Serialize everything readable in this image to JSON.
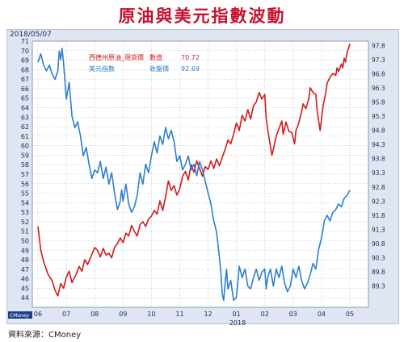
{
  "title": "原油與美元指數波動",
  "source": "資料來源：CMoney",
  "date_stamp": "2018/05/07",
  "watermark": "CMoney",
  "colors": {
    "oil": "#d41a1a",
    "dxy": "#2e7fd0",
    "title": "#c8102e",
    "plot_bg": "#ffffff",
    "panel_bg": "#dfe5f1",
    "grid": "#9aa7bd",
    "legend_text": "#d41a1a"
  },
  "chart_data": {
    "type": "line",
    "x_tick_labels": [
      "06",
      "07",
      "08",
      "09",
      "10",
      "11",
      "12",
      "01",
      "02",
      "03",
      "04",
      "05"
    ],
    "x_year_label": "2018",
    "ylim_left": [
      43,
      71
    ],
    "yticks_left": [
      44,
      45,
      46,
      47,
      48,
      49,
      50,
      51,
      52,
      53,
      54,
      55,
      56,
      57,
      58,
      59,
      60,
      61,
      62,
      63,
      64,
      65,
      66,
      67,
      68,
      69,
      70,
      71
    ],
    "ylim_right": [
      88.55,
      97.95
    ],
    "yticks_right": [
      "89.3",
      "89.8",
      "90.3",
      "90.8",
      "91.3",
      "91.8",
      "92.3",
      "92.8",
      "93.3",
      "93.8",
      "94.3",
      "94.8",
      "95.3",
      "95.8",
      "96.3",
      "96.8",
      "97.3",
      "97.8"
    ],
    "legend": [
      {
        "name": "西德州原油_現貨價",
        "metric": "數值",
        "value": "70.72"
      },
      {
        "name": "美元指數",
        "metric": "收盤價",
        "value": "92.69"
      }
    ],
    "series": [
      {
        "name": "西德州原油_現貨價",
        "axis": "left",
        "points": [
          [
            0,
            51.5
          ],
          [
            0.1,
            49
          ],
          [
            0.2,
            47.8
          ],
          [
            0.35,
            46.5
          ],
          [
            0.5,
            45.8
          ],
          [
            0.6,
            44.8
          ],
          [
            0.7,
            44.2
          ],
          [
            0.8,
            45.5
          ],
          [
            0.9,
            45
          ],
          [
            1.0,
            46.2
          ],
          [
            1.1,
            46.8
          ],
          [
            1.2,
            45.6
          ],
          [
            1.35,
            46.5
          ],
          [
            1.45,
            47.3
          ],
          [
            1.55,
            46.8
          ],
          [
            1.65,
            48
          ],
          [
            1.75,
            47.5
          ],
          [
            1.85,
            48.2
          ],
          [
            2.0,
            49.3
          ],
          [
            2.1,
            49
          ],
          [
            2.2,
            48.3
          ],
          [
            2.3,
            49.2
          ],
          [
            2.4,
            48.5
          ],
          [
            2.5,
            48.7
          ],
          [
            2.6,
            48.2
          ],
          [
            2.7,
            49.3
          ],
          [
            2.8,
            49.7
          ],
          [
            2.9,
            50.3
          ],
          [
            3.0,
            49.8
          ],
          [
            3.1,
            50.8
          ],
          [
            3.2,
            50.5
          ],
          [
            3.3,
            51.6
          ],
          [
            3.4,
            51
          ],
          [
            3.5,
            50.5
          ],
          [
            3.6,
            51.7
          ],
          [
            3.7,
            52
          ],
          [
            3.8,
            51.5
          ],
          [
            3.9,
            52.3
          ],
          [
            4.0,
            52.6
          ],
          [
            4.1,
            53.2
          ],
          [
            4.2,
            52.8
          ],
          [
            4.3,
            54.2
          ],
          [
            4.4,
            53.2
          ],
          [
            4.5,
            54.6
          ],
          [
            4.6,
            56.3
          ],
          [
            4.7,
            55.3
          ],
          [
            4.8,
            55.8
          ],
          [
            4.9,
            54.8
          ],
          [
            5.0,
            55.5
          ],
          [
            5.1,
            56.8
          ],
          [
            5.2,
            57.3
          ],
          [
            5.3,
            56.4
          ],
          [
            5.4,
            58
          ],
          [
            5.5,
            57.2
          ],
          [
            5.6,
            58.4
          ],
          [
            5.7,
            57.6
          ],
          [
            5.8,
            56.8
          ],
          [
            5.9,
            57.8
          ],
          [
            6.0,
            57.5
          ],
          [
            6.1,
            58.4
          ],
          [
            6.2,
            57.6
          ],
          [
            6.3,
            58.6
          ],
          [
            6.4,
            57.9
          ],
          [
            6.5,
            58.8
          ],
          [
            6.6,
            59.6
          ],
          [
            6.7,
            60.6
          ],
          [
            6.8,
            60.2
          ],
          [
            6.9,
            61.2
          ],
          [
            7.0,
            62.4
          ],
          [
            7.1,
            61.6
          ],
          [
            7.2,
            63.2
          ],
          [
            7.3,
            62.6
          ],
          [
            7.4,
            63.8
          ],
          [
            7.5,
            62.8
          ],
          [
            7.6,
            64.2
          ],
          [
            7.7,
            64.6
          ],
          [
            7.8,
            65.6
          ],
          [
            7.9,
            64.9
          ],
          [
            8.0,
            65.4
          ],
          [
            8.05,
            62.8
          ],
          [
            8.1,
            61.8
          ],
          [
            8.15,
            60.8
          ],
          [
            8.25,
            59
          ],
          [
            8.3,
            59.6
          ],
          [
            8.4,
            61
          ],
          [
            8.5,
            61.8
          ],
          [
            8.6,
            62.6
          ],
          [
            8.65,
            61.2
          ],
          [
            8.75,
            62.5
          ],
          [
            8.85,
            61.5
          ],
          [
            8.95,
            61.4
          ],
          [
            9.05,
            60.2
          ],
          [
            9.1,
            61.6
          ],
          [
            9.2,
            62.4
          ],
          [
            9.3,
            63.6
          ],
          [
            9.35,
            64.4
          ],
          [
            9.45,
            63.9
          ],
          [
            9.55,
            64.9
          ],
          [
            9.6,
            66.1
          ],
          [
            9.7,
            65.6
          ],
          [
            9.8,
            65.4
          ],
          [
            9.85,
            63.6
          ],
          [
            9.9,
            62.6
          ],
          [
            9.95,
            61.6
          ],
          [
            10.05,
            64.1
          ],
          [
            10.15,
            65.6
          ],
          [
            10.2,
            66.6
          ],
          [
            10.3,
            67.2
          ],
          [
            10.4,
            67.6
          ],
          [
            10.5,
            67.4
          ],
          [
            10.55,
            68.2
          ],
          [
            10.6,
            67.8
          ],
          [
            10.7,
            68.6
          ],
          [
            10.75,
            68.2
          ],
          [
            10.8,
            69.2
          ],
          [
            10.85,
            68.8
          ],
          [
            10.9,
            69.8
          ],
          [
            10.95,
            70.2
          ],
          [
            11.0,
            70.72
          ]
        ]
      },
      {
        "name": "美元指數",
        "axis": "right",
        "points": [
          [
            0,
            97.2
          ],
          [
            0.1,
            97.5
          ],
          [
            0.2,
            97.1
          ],
          [
            0.3,
            96.9
          ],
          [
            0.4,
            97.1
          ],
          [
            0.5,
            96.8
          ],
          [
            0.6,
            96.6
          ],
          [
            0.7,
            96.9
          ],
          [
            0.75,
            97.6
          ],
          [
            0.8,
            97.3
          ],
          [
            0.85,
            97.7
          ],
          [
            0.9,
            97.2
          ],
          [
            1.0,
            95.9
          ],
          [
            1.1,
            96.5
          ],
          [
            1.2,
            95.3
          ],
          [
            1.3,
            94.9
          ],
          [
            1.4,
            95.1
          ],
          [
            1.5,
            94.6
          ],
          [
            1.6,
            93.9
          ],
          [
            1.7,
            94.2
          ],
          [
            1.8,
            93.6
          ],
          [
            1.9,
            93.1
          ],
          [
            2.0,
            93.4
          ],
          [
            2.1,
            93.3
          ],
          [
            2.2,
            93.7
          ],
          [
            2.3,
            93.1
          ],
          [
            2.4,
            93.5
          ],
          [
            2.5,
            92.9
          ],
          [
            2.6,
            93.3
          ],
          [
            2.7,
            92.6
          ],
          [
            2.8,
            92.0
          ],
          [
            2.9,
            92.3
          ],
          [
            2.95,
            92.7
          ],
          [
            3.0,
            92.3
          ],
          [
            3.1,
            92.9
          ],
          [
            3.2,
            92.2
          ],
          [
            3.3,
            91.9
          ],
          [
            3.4,
            92.1
          ],
          [
            3.5,
            92.5
          ],
          [
            3.6,
            93.3
          ],
          [
            3.7,
            92.9
          ],
          [
            3.8,
            93.6
          ],
          [
            3.9,
            93.3
          ],
          [
            4.0,
            93.9
          ],
          [
            4.1,
            94.4
          ],
          [
            4.2,
            94.0
          ],
          [
            4.3,
            94.6
          ],
          [
            4.4,
            94.3
          ],
          [
            4.5,
            94.9
          ],
          [
            4.6,
            94.5
          ],
          [
            4.7,
            94.8
          ],
          [
            4.8,
            94.4
          ],
          [
            4.9,
            93.7
          ],
          [
            5.0,
            93.9
          ],
          [
            5.1,
            93.4
          ],
          [
            5.2,
            93.6
          ],
          [
            5.3,
            93.9
          ],
          [
            5.4,
            93.4
          ],
          [
            5.5,
            93.6
          ],
          [
            5.6,
            93.2
          ],
          [
            5.7,
            93.7
          ],
          [
            5.8,
            93.4
          ],
          [
            5.9,
            93.0
          ],
          [
            6.0,
            92.6
          ],
          [
            6.1,
            92.2
          ],
          [
            6.15,
            91.9
          ],
          [
            6.2,
            91.6
          ],
          [
            6.3,
            91.2
          ],
          [
            6.4,
            90.3
          ],
          [
            6.45,
            89.8
          ],
          [
            6.5,
            89.0
          ],
          [
            6.55,
            88.8
          ],
          [
            6.6,
            89.4
          ],
          [
            6.65,
            89.9
          ],
          [
            6.7,
            89.2
          ],
          [
            6.8,
            89.5
          ],
          [
            6.9,
            88.8
          ],
          [
            7.0,
            88.9
          ],
          [
            7.1,
            90.0
          ],
          [
            7.2,
            89.6
          ],
          [
            7.3,
            89.9
          ],
          [
            7.4,
            89.3
          ],
          [
            7.5,
            89.2
          ],
          [
            7.6,
            89.6
          ],
          [
            7.7,
            89.9
          ],
          [
            7.8,
            89.5
          ],
          [
            7.9,
            89.8
          ],
          [
            8.0,
            89.9
          ],
          [
            8.05,
            89.2
          ],
          [
            8.1,
            89.6
          ],
          [
            8.2,
            89.9
          ],
          [
            8.3,
            89.3
          ],
          [
            8.4,
            89.9
          ],
          [
            8.5,
            89.6
          ],
          [
            8.6,
            90.0
          ],
          [
            8.7,
            89.4
          ],
          [
            8.8,
            89.1
          ],
          [
            8.9,
            89.3
          ],
          [
            9.0,
            89.9
          ],
          [
            9.1,
            89.6
          ],
          [
            9.2,
            90.0
          ],
          [
            9.3,
            89.5
          ],
          [
            9.4,
            89.2
          ],
          [
            9.5,
            89.4
          ],
          [
            9.6,
            89.7
          ],
          [
            9.7,
            90.1
          ],
          [
            9.8,
            89.9
          ],
          [
            9.9,
            90.6
          ],
          [
            10.0,
            91.0
          ],
          [
            10.1,
            91.6
          ],
          [
            10.2,
            91.8
          ],
          [
            10.3,
            91.6
          ],
          [
            10.4,
            91.9
          ],
          [
            10.5,
            92.0
          ],
          [
            10.6,
            92.2
          ],
          [
            10.7,
            92.1
          ],
          [
            10.8,
            92.4
          ],
          [
            10.9,
            92.5
          ],
          [
            11.0,
            92.69
          ]
        ]
      }
    ]
  }
}
